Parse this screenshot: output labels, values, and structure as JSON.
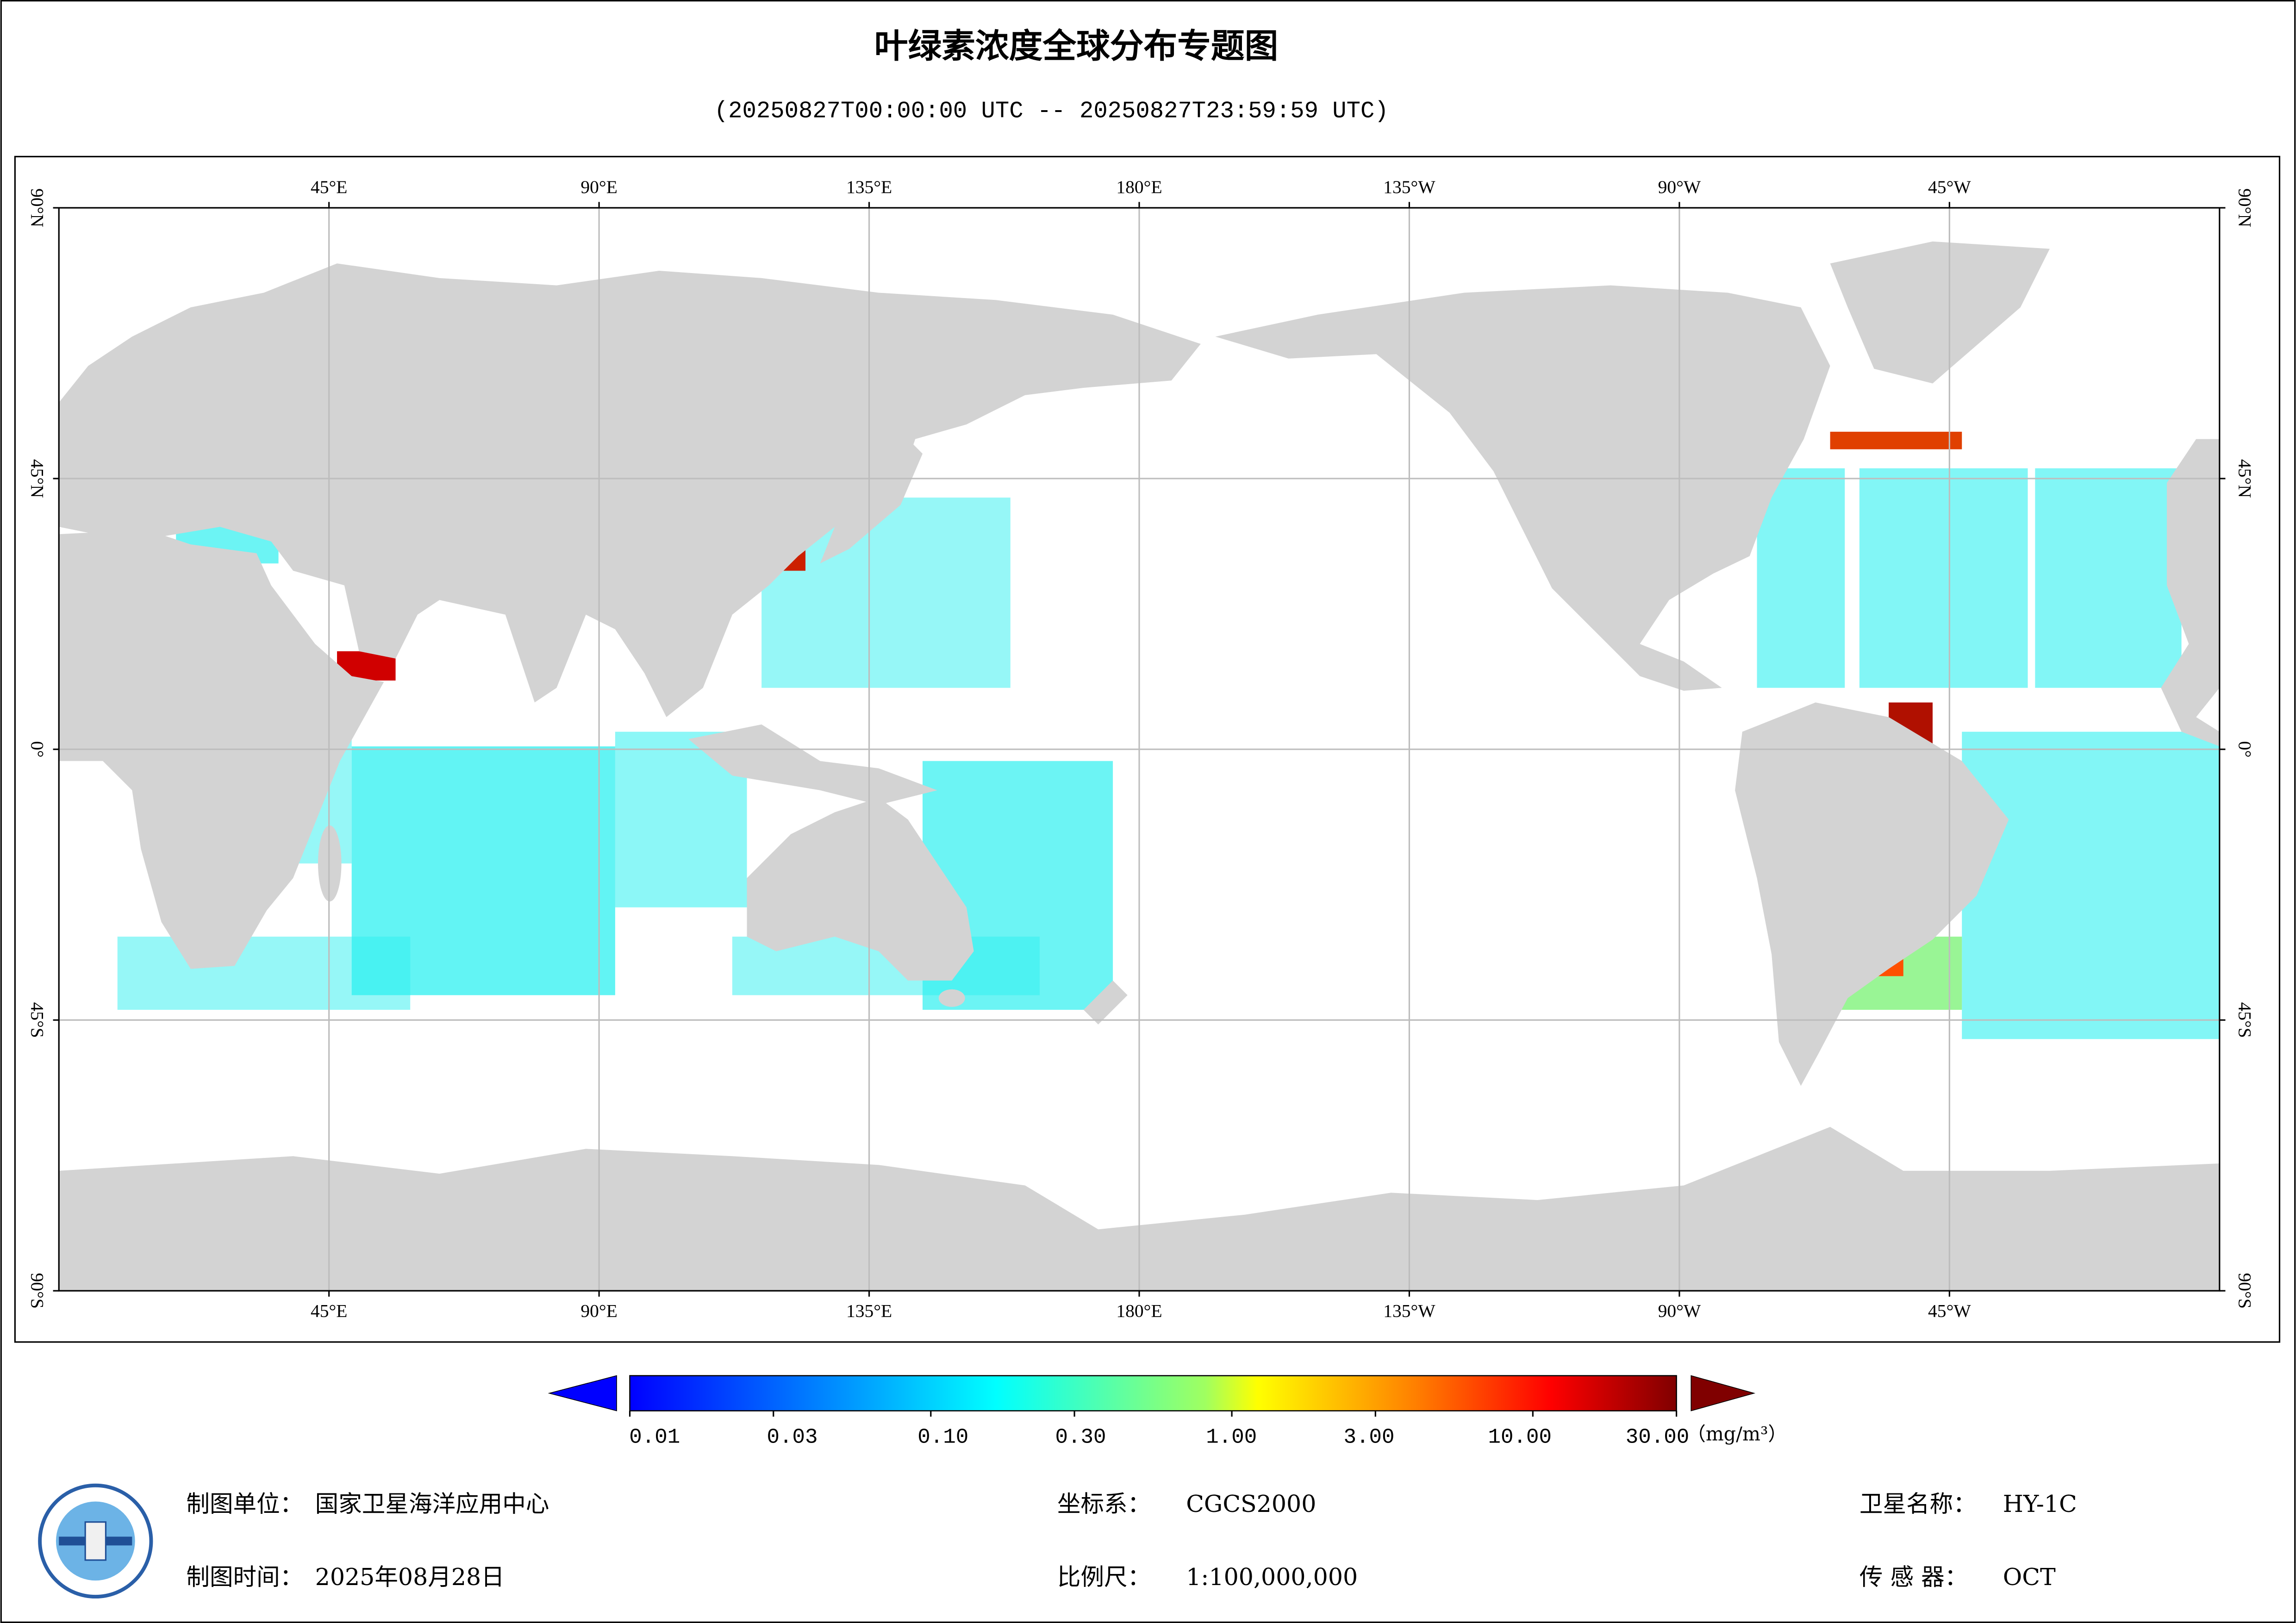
{
  "title": "叶绿素浓度全球分布专题图",
  "subtitle": "(20250827T00:00:00 UTC -- 20250827T23:59:59 UTC)",
  "map": {
    "lon_range": [
      0,
      360
    ],
    "lat_range": [
      -90,
      90
    ],
    "lon_ticks": [
      {
        "value": 45,
        "label": "45°E"
      },
      {
        "value": 90,
        "label": "90°E"
      },
      {
        "value": 135,
        "label": "135°E"
      },
      {
        "value": 180,
        "label": "180°E"
      },
      {
        "value": 225,
        "label": "135°W"
      },
      {
        "value": 270,
        "label": "90°W"
      },
      {
        "value": 315,
        "label": "45°W"
      }
    ],
    "lat_ticks": [
      {
        "value": 90,
        "label": "90°N"
      },
      {
        "value": 45,
        "label": "45°N"
      },
      {
        "value": 0,
        "label": "0°"
      },
      {
        "value": -45,
        "label": "45°S"
      },
      {
        "value": -90,
        "label": "90°S"
      }
    ]
  },
  "colorbar": {
    "scale": "log",
    "range": [
      0.01,
      30
    ],
    "ticks": [
      {
        "value": 0.01,
        "label": "0.01"
      },
      {
        "value": 0.03,
        "label": "0.03"
      },
      {
        "value": 0.1,
        "label": "0.10"
      },
      {
        "value": 0.3,
        "label": "0.30"
      },
      {
        "value": 1,
        "label": "1.00"
      },
      {
        "value": 3,
        "label": "3.00"
      },
      {
        "value": 10,
        "label": "10.00"
      },
      {
        "value": 30,
        "label": "30.00"
      }
    ],
    "unit": "（mg/m³）"
  },
  "footer": {
    "left": [
      {
        "label": "制图单位：",
        "value": "国家卫星海洋应用中心"
      },
      {
        "label": "制图时间：",
        "value": "2025年08月28日"
      }
    ],
    "center": [
      {
        "label": "坐标系：",
        "value": "CGCS2000"
      },
      {
        "label": "比例尺：",
        "value": "1:100,000,000"
      }
    ],
    "right": [
      {
        "label": "卫星名称：",
        "value": "HY-1C"
      },
      {
        "label": "传 感 器：",
        "value": "OCT"
      }
    ]
  }
}
